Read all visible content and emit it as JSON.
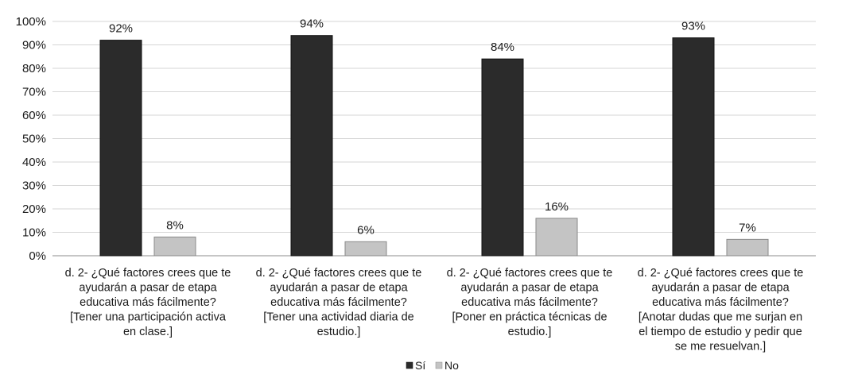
{
  "chart_data": {
    "type": "bar",
    "ylim": [
      0,
      100
    ],
    "yticks": [
      0,
      10,
      20,
      30,
      40,
      50,
      60,
      70,
      80,
      90,
      100
    ],
    "ytick_suffix": "%",
    "grid": true,
    "legend_position": "bottom",
    "categories": [
      [
        "d. 2- ¿Qué factores crees que te",
        "ayudarán a pasar de etapa",
        "educativa más fácilmente?",
        "[Tener una participación activa",
        "en clase.]"
      ],
      [
        "d. 2- ¿Qué factores crees que te",
        "ayudarán a pasar de etapa",
        "educativa más fácilmente?",
        "[Tener una actividad diaria de",
        "estudio.]"
      ],
      [
        "d. 2- ¿Qué factores crees que te",
        "ayudarán a pasar de etapa",
        "educativa más fácilmente?",
        "[Poner en práctica técnicas de",
        "estudio.]"
      ],
      [
        "d. 2- ¿Qué factores crees que te",
        "ayudarán a pasar de etapa",
        "educativa más fácilmente?",
        "[Anotar dudas que me surjan en",
        "el tiempo de estudio y pedir que",
        "se me resuelvan.]"
      ]
    ],
    "series": [
      {
        "name": "Sí",
        "color": "#2b2b2b",
        "values": [
          92,
          94,
          84,
          93
        ],
        "labels": [
          "92%",
          "94%",
          "84%",
          "93%"
        ]
      },
      {
        "name": "No",
        "color": "#c4c4c4",
        "values": [
          8,
          6,
          16,
          7
        ],
        "labels": [
          "8%",
          "6%",
          "16%",
          "7%"
        ]
      }
    ]
  }
}
